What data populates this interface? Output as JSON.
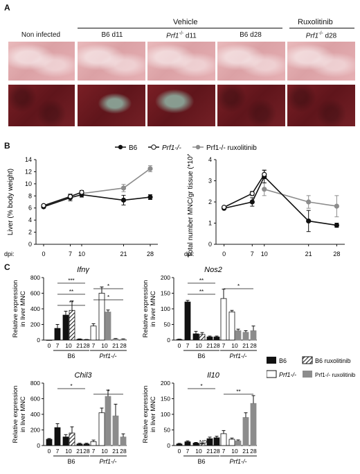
{
  "panel_a": {
    "letter": "A",
    "group_vehicle": "Vehicle",
    "group_ruxolitinib": "Ruxolitinib",
    "columns": [
      "Non infected",
      "B6 d11",
      "Prf1-/- d11",
      "B6 d28",
      "Prf1-/- d28"
    ],
    "col_prefix": [
      "",
      "B6",
      "Prf1",
      "B6",
      "Prf1"
    ],
    "col_sup": [
      "",
      "",
      "-/-",
      "",
      "-/-"
    ],
    "col_suffix": [
      "",
      " d11",
      " d11",
      " d28",
      " d28"
    ],
    "colors": {
      "stain_light": "#e1aaae",
      "stain_dark": "#6b1a20",
      "fibrosis": "#8fb3a4"
    }
  },
  "panel_b": {
    "letter": "B",
    "legend": [
      "B6",
      "Prf1-/-",
      "Prf1-/- ruxolitinib"
    ],
    "xlabel": "dpi:",
    "colors": {
      "B6": "#111111",
      "Prf1": "#111111",
      "Rux": "#8c8c8c"
    }
  },
  "panel_c": {
    "letter": "C",
    "legend": [
      "B6",
      "B6 ruxolitinib",
      "Prf1-/-",
      "Prf1-/- ruxolitinib"
    ],
    "nd_label": "ND",
    "ylabel": "Relative expression in liver MNC"
  },
  "chart_data": [
    {
      "type": "line",
      "id": "liver",
      "ylabel": "Liver (% body weight)",
      "x": [
        0,
        7,
        10,
        21,
        28
      ],
      "xticks": [
        "0",
        "7",
        "10",
        "21",
        "28"
      ],
      "ylim": [
        0,
        14
      ],
      "yticks": [
        0,
        2,
        4,
        6,
        8,
        10,
        12,
        14
      ],
      "series": [
        {
          "name": "B6",
          "x": [
            0,
            7,
            10,
            21,
            28
          ],
          "values": [
            6.2,
            7.7,
            8.2,
            7.3,
            7.8
          ],
          "err": [
            0.2,
            0.5,
            0.4,
            0.8,
            0.4
          ]
        },
        {
          "name": "Prf1-/-",
          "x": [
            0,
            7,
            10
          ],
          "values": [
            6.4,
            7.9,
            8.6
          ],
          "err": [
            0.2,
            0.4,
            0.3
          ]
        },
        {
          "name": "Prf1-/- ruxolitinib",
          "x": [
            10,
            21,
            28
          ],
          "values": [
            8.4,
            9.3,
            12.5
          ],
          "err": [
            0.3,
            0.6,
            0.5
          ]
        }
      ]
    },
    {
      "type": "line",
      "id": "mnc",
      "ylabel": "Total number MNC/gr tissue (*10^7)",
      "x": [
        0,
        7,
        10,
        21,
        28
      ],
      "xticks": [
        "0",
        "7",
        "10",
        "21",
        "28"
      ],
      "ylim": [
        0,
        4
      ],
      "yticks": [
        0,
        1,
        2,
        3,
        4
      ],
      "series": [
        {
          "name": "B6",
          "x": [
            0,
            7,
            10,
            21,
            28
          ],
          "values": [
            1.7,
            2.0,
            3.2,
            1.1,
            0.9
          ],
          "err": [
            0.05,
            0.2,
            0.3,
            0.5,
            0.1
          ]
        },
        {
          "name": "Prf1-/-",
          "x": [
            0,
            7,
            10
          ],
          "values": [
            1.75,
            2.4,
            3.3
          ],
          "err": [
            0.05,
            0.1,
            0.2
          ]
        },
        {
          "name": "Prf1-/- ruxolitinib",
          "x": [
            10,
            21,
            28
          ],
          "values": [
            2.6,
            2.0,
            1.8
          ],
          "err": [
            0.3,
            0.3,
            0.5
          ]
        }
      ]
    },
    {
      "type": "bar",
      "id": "ifng",
      "title": "Ifnγ",
      "ylim": [
        0,
        800
      ],
      "yticks": [
        0,
        200,
        400,
        600,
        800
      ],
      "categories": [
        "0",
        "7",
        "10",
        "21",
        "28"
      ],
      "b6": [
        0,
        150,
        320,
        10,
        5
      ],
      "b6_err": [
        0,
        50,
        50,
        5,
        3
      ],
      "b6_rux": [
        null,
        null,
        380,
        null,
        null
      ],
      "b6_rux_err": [
        null,
        null,
        120,
        null,
        null
      ],
      "prf": [
        null,
        180,
        600,
        null,
        null
      ],
      "prf_err": [
        null,
        30,
        80,
        null,
        null
      ],
      "prf_rux": [
        null,
        null,
        360,
        15,
        10
      ],
      "prf_rux_err": [
        null,
        null,
        25,
        5,
        5
      ],
      "stars": [
        "***",
        "*",
        "**",
        "*",
        "**"
      ],
      "group_labels": [
        "B6",
        "Prf1-/-"
      ]
    },
    {
      "type": "bar",
      "id": "nos2",
      "title": "Nos2",
      "ylim": [
        0,
        200
      ],
      "yticks": [
        0,
        50,
        100,
        150,
        200
      ],
      "categories": [
        "0",
        "7",
        "10",
        "21",
        "28"
      ],
      "b6": [
        2,
        122,
        20,
        10,
        10
      ],
      "b6_err": [
        1,
        5,
        8,
        3,
        3
      ],
      "b6_rux": [
        null,
        null,
        18,
        null,
        null
      ],
      "b6_rux_err": [
        null,
        null,
        6,
        null,
        null
      ],
      "prf": [
        null,
        133,
        90,
        null,
        null
      ],
      "prf_err": [
        null,
        30,
        5,
        null,
        null
      ],
      "prf_rux": [
        null,
        null,
        30,
        25,
        30
      ],
      "prf_rux_err": [
        null,
        null,
        5,
        5,
        15
      ],
      "stars": [
        "**",
        "*",
        "**"
      ],
      "group_labels": [
        "B6",
        "Prf1-/-"
      ]
    },
    {
      "type": "bar",
      "id": "chil3",
      "title": "Chil3",
      "ylim": [
        0,
        800
      ],
      "yticks": [
        0,
        200,
        400,
        600,
        800
      ],
      "categories": [
        "0",
        "7",
        "10",
        "21",
        "28"
      ],
      "b6": [
        80,
        230,
        110,
        20,
        20
      ],
      "b6_err": [
        10,
        50,
        30,
        10,
        10
      ],
      "b6_rux": [
        null,
        null,
        160,
        null,
        null
      ],
      "b6_rux_err": [
        null,
        null,
        80,
        null,
        null
      ],
      "prf": [
        null,
        50,
        420,
        null,
        null
      ],
      "prf_err": [
        null,
        20,
        60,
        null,
        null
      ],
      "prf_rux": [
        null,
        null,
        630,
        380,
        110
      ],
      "prf_rux_err": [
        null,
        null,
        80,
        150,
        40
      ],
      "stars": [
        "*",
        "*"
      ],
      "group_labels": [
        "B6",
        "Prf1-/-"
      ]
    },
    {
      "type": "bar",
      "id": "il10",
      "title": "Il10",
      "ylim": [
        0,
        200
      ],
      "yticks": [
        0,
        50,
        100,
        150,
        200
      ],
      "categories": [
        "0",
        "7",
        "10",
        "21",
        "28"
      ],
      "b6": [
        5,
        12,
        8,
        22,
        25
      ],
      "b6_err": [
        2,
        3,
        2,
        5,
        5
      ],
      "b6_rux": [
        null,
        null,
        5,
        null,
        null
      ],
      "b6_rux_err": [
        null,
        null,
        2,
        null,
        null
      ],
      "prf": [
        null,
        38,
        20,
        null,
        null
      ],
      "prf_err": [
        null,
        10,
        4,
        null,
        null
      ],
      "prf_rux": [
        null,
        null,
        15,
        90,
        135
      ],
      "prf_rux_err": [
        null,
        null,
        3,
        15,
        25
      ],
      "stars": [
        "*",
        "**"
      ],
      "group_labels": [
        "B6",
        "Prf1-/-"
      ]
    }
  ]
}
